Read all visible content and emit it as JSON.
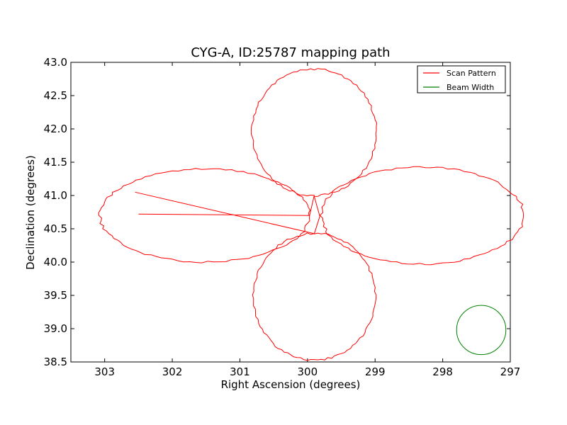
{
  "chart_data": {
    "type": "line",
    "title": "CYG-A, ID:25787 mapping path",
    "xlabel": "Right Ascension (degrees)",
    "ylabel": "Declination (degrees)",
    "xlim": [
      303.5,
      297.0
    ],
    "ylim": [
      38.5,
      43.0
    ],
    "x_reversed": true,
    "xticks": [
      "303",
      "302",
      "301",
      "300",
      "299",
      "298",
      "297"
    ],
    "xtick_values": [
      303,
      302,
      301,
      300,
      299,
      298,
      297
    ],
    "yticks": [
      "38.5",
      "39.0",
      "39.5",
      "40.0",
      "40.5",
      "41.0",
      "41.5",
      "42.0",
      "42.5",
      "43.0"
    ],
    "ytick_values": [
      38.5,
      39.0,
      39.5,
      40.0,
      40.5,
      41.0,
      41.5,
      42.0,
      42.5,
      43.0
    ],
    "legend_position": "top-right",
    "series": [
      {
        "name": "Scan Pattern",
        "color": "#ff0000",
        "description_shape": "four-lobed cloverleaf scan around RA 299.9, Dec 40.7",
        "lobes": [
          {
            "center": [
              299.9,
              41.95
            ],
            "rx": 0.92,
            "ry": 0.95
          },
          {
            "center": [
              299.9,
              39.48
            ],
            "rx": 0.9,
            "ry": 0.95
          },
          {
            "center": [
              301.52,
              40.7
            ],
            "rx": 1.55,
            "ry": 0.7
          },
          {
            "center": [
              298.3,
              40.7
            ],
            "rx": 1.5,
            "ry": 0.73
          }
        ],
        "start": [
          302.5,
          40.72
        ],
        "end": [
          302.55,
          41.05
        ]
      },
      {
        "name": "Beam Width",
        "color": "#008000",
        "circle": {
          "center": [
            297.43,
            38.98
          ],
          "radius_dec": 0.37
        }
      }
    ]
  }
}
